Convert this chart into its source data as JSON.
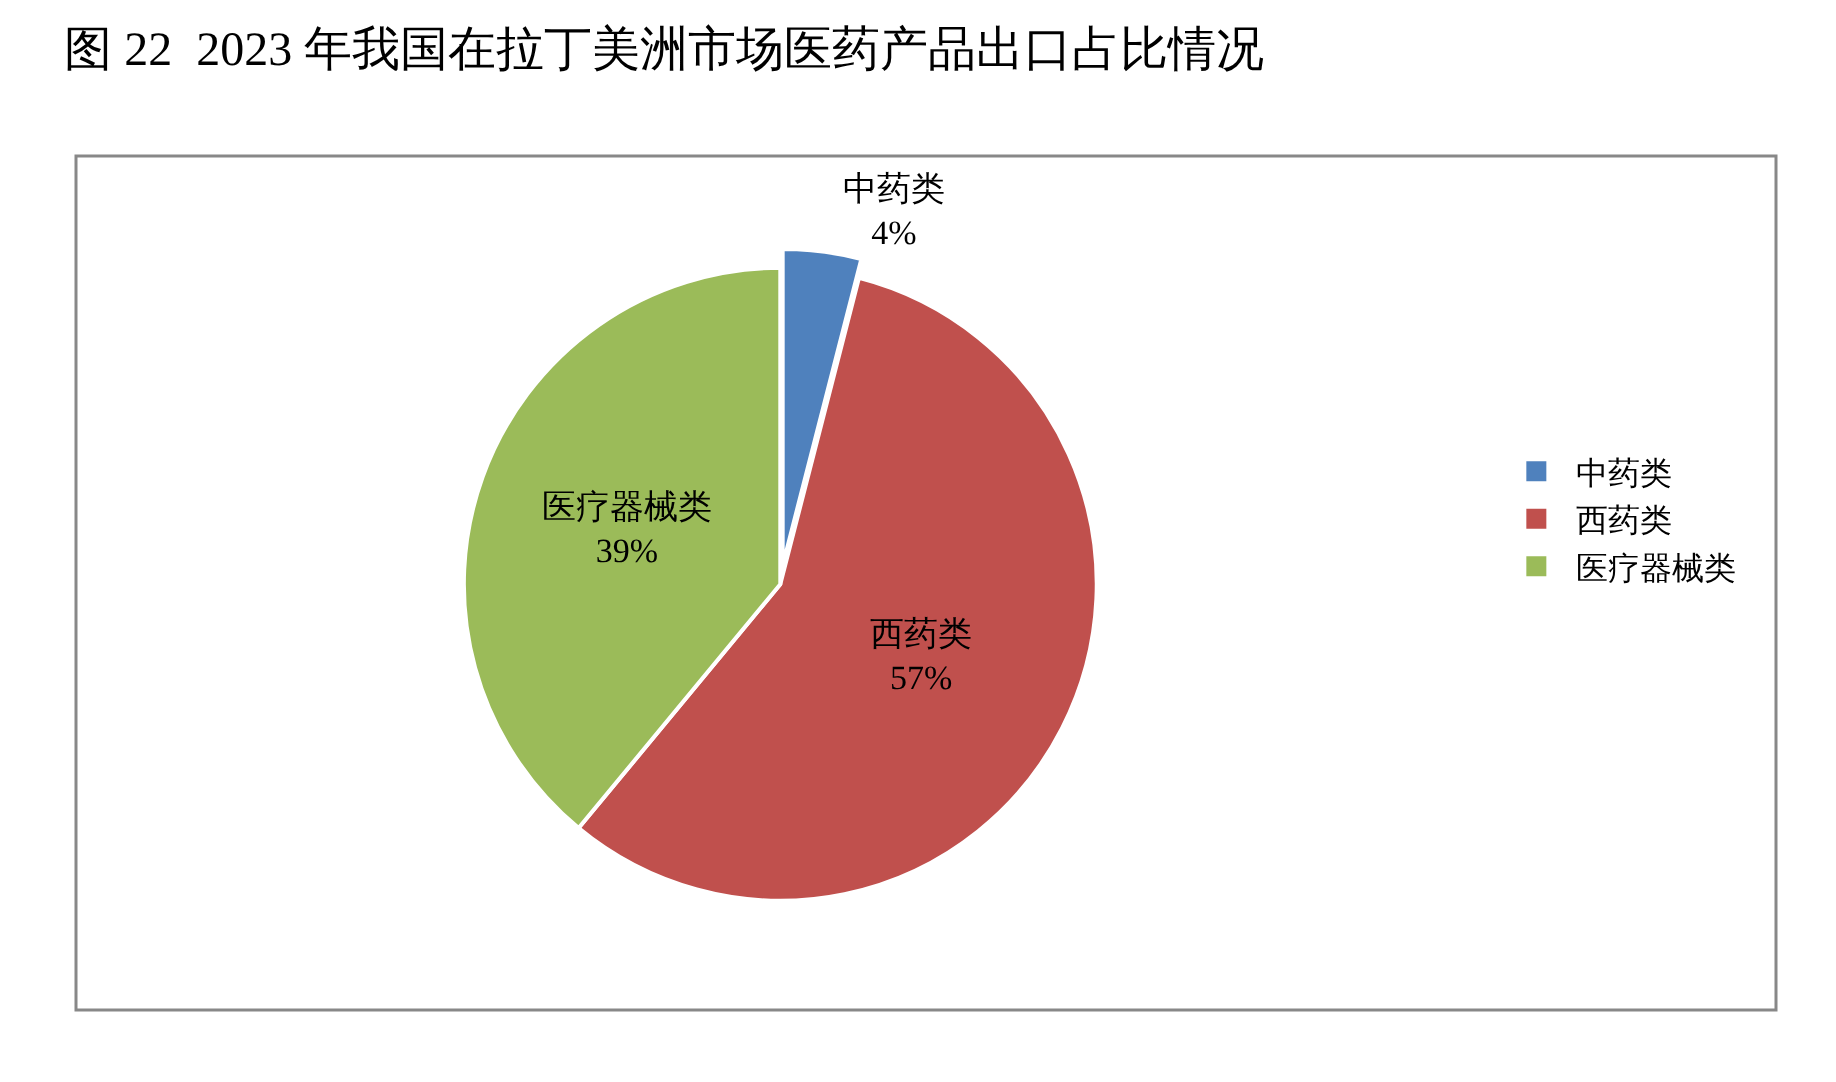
{
  "chart_data": {
    "type": "pie",
    "title": "图 22  2023 年我国在拉丁美洲市场医药产品出口占比情况",
    "categories": [
      "中药类",
      "西药类",
      "医疗器械类"
    ],
    "values": [
      4,
      57,
      39
    ],
    "value_labels": [
      "4%",
      "57%",
      "39%"
    ],
    "colors": [
      "#4f81bd",
      "#c0504d",
      "#9bbb59"
    ],
    "legend": "right"
  }
}
